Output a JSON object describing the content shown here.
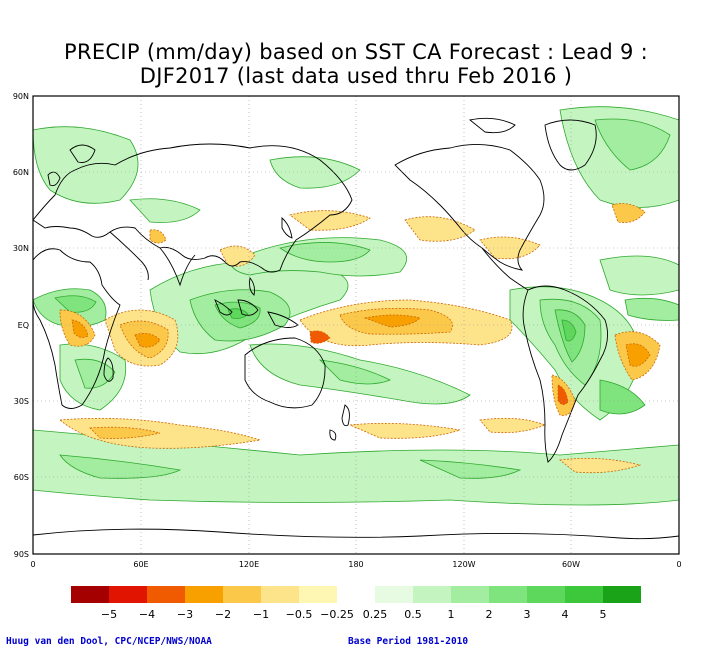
{
  "title": {
    "line1": "PRECIP (mm/day) based on SST CA Forecast : Lead 9 :",
    "line2": "DJF2017 (last data used thru Feb 2016 )"
  },
  "map": {
    "lat_labels": [
      "90N",
      "60N",
      "30N",
      "EQ",
      "30S",
      "60S",
      "90S"
    ],
    "lon_labels": [
      "0",
      "60E",
      "120E",
      "180",
      "120W",
      "60W",
      "0"
    ]
  },
  "legend": {
    "colors": [
      "#a50000",
      "#e01400",
      "#f05a00",
      "#f7a000",
      "#fcc84a",
      "#fde48a",
      "#fef7b4",
      "#ffffff",
      "#e6fbe2",
      "#c4f5c0",
      "#a2eda0",
      "#80e47e",
      "#5ed85c",
      "#3cc83a",
      "#1aa318"
    ],
    "labels": [
      "−5",
      "−4",
      "−3",
      "−2",
      "−1",
      "−0.5",
      "−0.25",
      "0.25",
      "0.5",
      "1",
      "2",
      "3",
      "4",
      "5"
    ]
  },
  "footer": {
    "credit": "Huug van den Dool, CPC/NCEP/NWS/NOAA",
    "base_period": "Base Period 1981-2010"
  }
}
